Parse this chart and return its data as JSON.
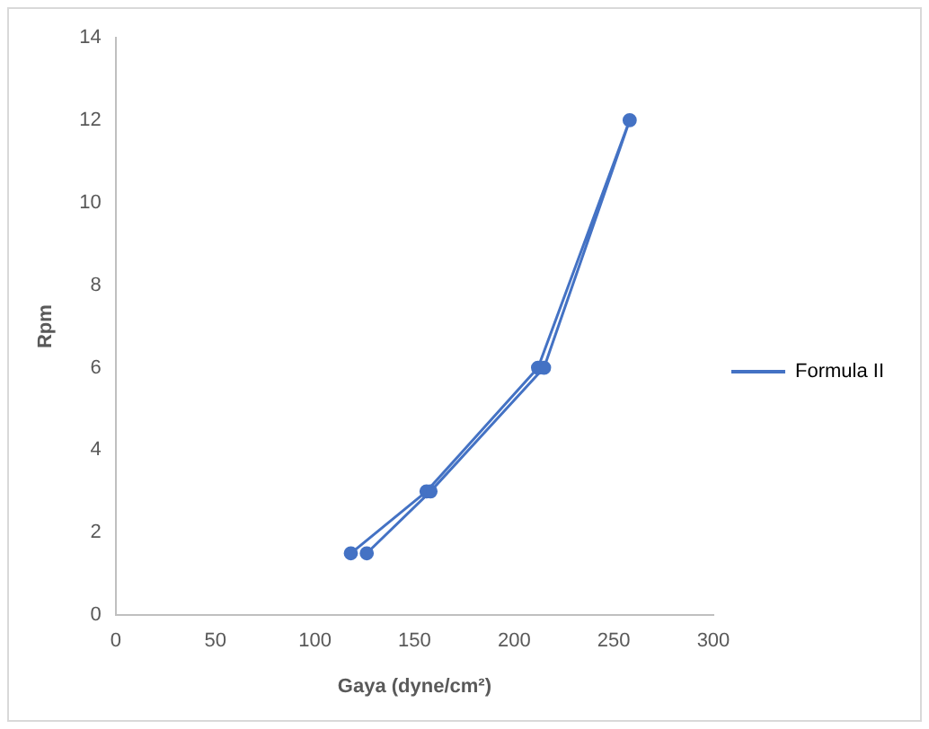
{
  "chart_data": {
    "type": "line",
    "xlabel": "Gaya (dyne/cm²)",
    "ylabel": "Rpm",
    "series": [
      {
        "name": "Formula II",
        "color": "#4472c4",
        "x": [
          118,
          156,
          212,
          258,
          215,
          158,
          126
        ],
        "values": [
          1.5,
          3,
          6,
          12,
          6,
          3,
          1.5
        ]
      }
    ],
    "xlim": [
      0,
      300
    ],
    "xticks": [
      0,
      50,
      100,
      150,
      200,
      250,
      300
    ],
    "ylim": [
      0,
      14
    ],
    "yticks": [
      0,
      2,
      4,
      6,
      8,
      10,
      12,
      14
    ],
    "grid": false,
    "legend": "right",
    "marker": "circle",
    "line_style": "solid"
  }
}
